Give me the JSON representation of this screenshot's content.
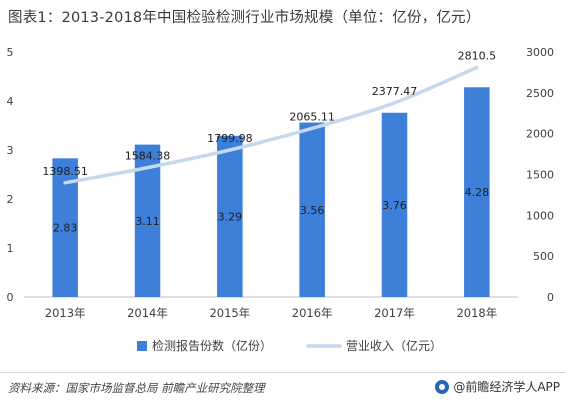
{
  "title": "图表1：2013-2018年中国检验检测行业市场规模（单位：亿份，亿元）",
  "chart_data": {
    "type": "bar",
    "categories": [
      "2013年",
      "2014年",
      "2015年",
      "2016年",
      "2017年",
      "2018年"
    ],
    "series": [
      {
        "name": "检测报告份数（亿份）",
        "kind": "bar",
        "axis": "left",
        "values": [
          2.83,
          3.11,
          3.29,
          3.56,
          3.76,
          4.28
        ],
        "labels": [
          "2.83",
          "3.11",
          "3.29",
          "3.56",
          "3.76",
          "4.28"
        ],
        "color": "#3d7fd9"
      },
      {
        "name": "营业收入（亿元）",
        "kind": "line",
        "axis": "right",
        "values": [
          1398.51,
          1584.38,
          1799.98,
          2065.11,
          2377.47,
          2810.5
        ],
        "labels": [
          "1398.51",
          "1584.38",
          "1799.98",
          "2065.11",
          "2377.47",
          "2810.5"
        ],
        "color": "#c5d9ee"
      }
    ],
    "y_left": {
      "min": 0,
      "max": 5,
      "ticks": [
        "0",
        "1",
        "2",
        "3",
        "4",
        "5"
      ]
    },
    "y_right": {
      "min": 0,
      "max": 3000,
      "ticks": [
        "0",
        "500",
        "1000",
        "1500",
        "2000",
        "2500",
        "3000"
      ]
    },
    "grid": false,
    "legend_position": "bottom"
  },
  "footer": {
    "source": "资料来源：国家市场监督总局 前瞻产业研究院整理",
    "brand": "@前瞻经济学人APP"
  }
}
